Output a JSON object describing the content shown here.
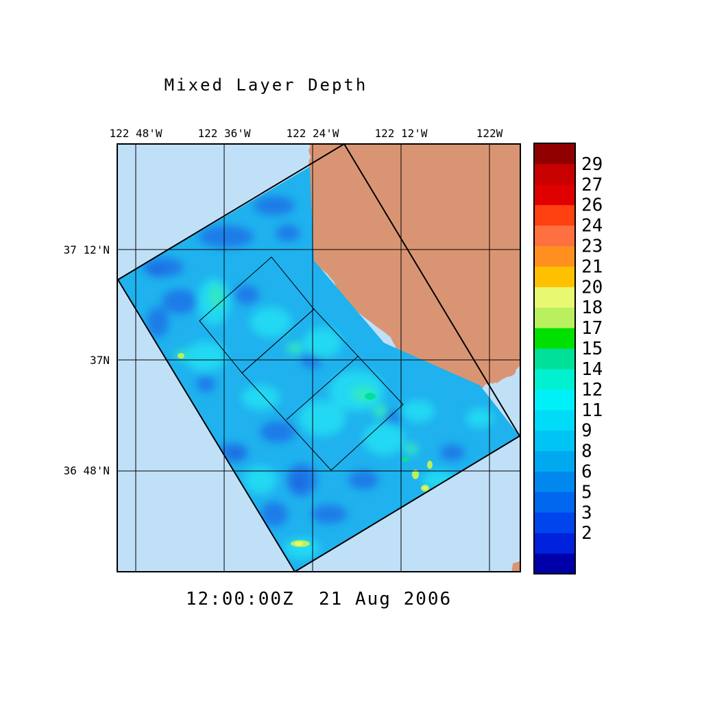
{
  "title": "Mixed Layer Depth",
  "timestamp": "12:00:00Z  21 Aug 2006",
  "lon_labels": [
    "122 48'W",
    "122 36'W",
    "122 24'W",
    "122 12'W",
    "122W"
  ],
  "lat_labels": [
    "37 12'N",
    "37N",
    "36 48'N"
  ],
  "colorbar": {
    "labels": [
      "29",
      "27",
      "26",
      "24",
      "23",
      "21",
      "20",
      "18",
      "17",
      "15",
      "14",
      "12",
      "11",
      "9",
      "8",
      "6",
      "5",
      "3",
      "2"
    ],
    "colors": [
      "#0000aa",
      "#0022dd",
      "#0044ee",
      "#0066ee",
      "#0088ee",
      "#00a8f0",
      "#00c4f4",
      "#00dcf8",
      "#00f0f8",
      "#00f0d0",
      "#00e098",
      "#00e000",
      "#b8f060",
      "#e8f870",
      "#ffc000",
      "#ff9020",
      "#ff7040",
      "#ff4010",
      "#e00000",
      "#c80000",
      "#900000"
    ]
  },
  "colors": {
    "ocean": "#c0e0f8",
    "land": "#d99573",
    "model_base": "#1fb2ee"
  }
}
